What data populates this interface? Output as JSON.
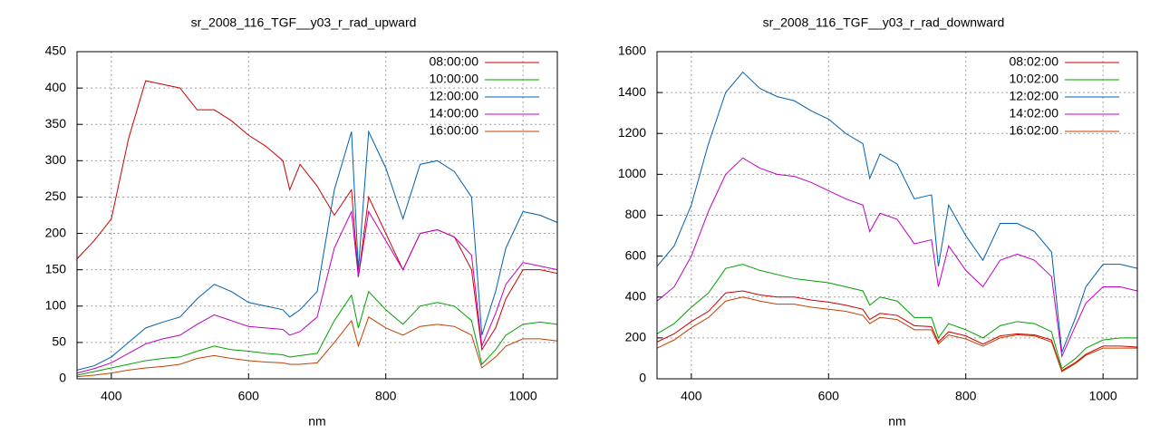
{
  "chart_data": [
    {
      "type": "line",
      "title": "sr_2008_116_TGF__y03_r_rad_upward",
      "x_label": "nm",
      "x": [
        350,
        375,
        400,
        425,
        450,
        475,
        500,
        525,
        550,
        575,
        600,
        625,
        650,
        660,
        675,
        700,
        725,
        750,
        760,
        775,
        800,
        825,
        850,
        875,
        900,
        925,
        940,
        960,
        975,
        1000,
        1025,
        1050
      ],
      "xlim": [
        350,
        1050
      ],
      "xticks": [
        400,
        600,
        800,
        1000
      ],
      "ylim": [
        0,
        450
      ],
      "yticks": [
        0,
        50,
        100,
        150,
        200,
        250,
        300,
        350,
        400,
        450
      ],
      "grid": true,
      "legend": "top-right",
      "series": [
        {
          "name": "08:00:00",
          "color": "#cc0000",
          "values": [
            165,
            190,
            220,
            330,
            410,
            405,
            400,
            370,
            370,
            355,
            335,
            320,
            300,
            260,
            295,
            265,
            225,
            260,
            140,
            250,
            200,
            150,
            200,
            205,
            195,
            150,
            40,
            70,
            110,
            150,
            150,
            145
          ]
        },
        {
          "name": "10:00:00",
          "color": "#00a000",
          "values": [
            5,
            10,
            15,
            20,
            25,
            28,
            30,
            38,
            45,
            40,
            38,
            35,
            33,
            30,
            32,
            35,
            80,
            115,
            70,
            120,
            95,
            75,
            100,
            105,
            100,
            80,
            20,
            40,
            60,
            75,
            78,
            75
          ]
        },
        {
          "name": "12:00:00",
          "color": "#0060ad",
          "values": [
            12,
            18,
            30,
            50,
            70,
            78,
            85,
            110,
            130,
            120,
            105,
            100,
            95,
            85,
            95,
            120,
            260,
            340,
            150,
            340,
            290,
            220,
            295,
            300,
            285,
            250,
            60,
            120,
            180,
            230,
            225,
            215
          ]
        },
        {
          "name": "14:00:00",
          "color": "#c000c0",
          "values": [
            8,
            14,
            22,
            35,
            48,
            55,
            60,
            75,
            88,
            80,
            72,
            70,
            68,
            60,
            65,
            85,
            180,
            230,
            140,
            230,
            190,
            150,
            200,
            205,
            195,
            170,
            45,
            90,
            130,
            160,
            155,
            150
          ]
        },
        {
          "name": "16:00:00",
          "color": "#c04000",
          "values": [
            3,
            5,
            8,
            12,
            15,
            17,
            20,
            28,
            32,
            28,
            25,
            23,
            22,
            20,
            20,
            22,
            50,
            80,
            45,
            85,
            70,
            60,
            72,
            75,
            72,
            60,
            15,
            30,
            45,
            55,
            55,
            52
          ]
        }
      ]
    },
    {
      "type": "line",
      "title": "sr_2008_116_TGF__y03_r_rad_downward",
      "x_label": "nm",
      "x": [
        350,
        375,
        400,
        425,
        450,
        475,
        500,
        525,
        550,
        575,
        600,
        625,
        650,
        660,
        675,
        700,
        725,
        750,
        760,
        775,
        800,
        825,
        850,
        875,
        900,
        925,
        940,
        960,
        975,
        1000,
        1025,
        1050
      ],
      "xlim": [
        350,
        1050
      ],
      "xticks": [
        400,
        600,
        800,
        1000
      ],
      "ylim": [
        0,
        1600
      ],
      "yticks": [
        0,
        200,
        400,
        600,
        800,
        1000,
        1200,
        1400,
        1600
      ],
      "grid": true,
      "legend": "top-right",
      "series": [
        {
          "name": "08:02:00",
          "color": "#cc0000",
          "values": [
            180,
            220,
            280,
            330,
            420,
            430,
            410,
            400,
            400,
            385,
            375,
            360,
            340,
            290,
            320,
            310,
            260,
            255,
            180,
            230,
            210,
            170,
            210,
            220,
            215,
            190,
            40,
            80,
            120,
            160,
            160,
            155
          ]
        },
        {
          "name": "10:02:00",
          "color": "#00a000",
          "values": [
            220,
            270,
            350,
            420,
            540,
            560,
            530,
            510,
            490,
            480,
            470,
            450,
            430,
            360,
            400,
            380,
            300,
            300,
            200,
            270,
            240,
            200,
            260,
            280,
            270,
            230,
            50,
            100,
            150,
            190,
            200,
            200
          ]
        },
        {
          "name": "12:02:00",
          "color": "#0060ad",
          "values": [
            550,
            650,
            850,
            1150,
            1400,
            1500,
            1420,
            1380,
            1360,
            1310,
            1270,
            1200,
            1150,
            980,
            1100,
            1050,
            880,
            900,
            550,
            850,
            700,
            580,
            760,
            760,
            720,
            620,
            130,
            300,
            450,
            560,
            560,
            540
          ]
        },
        {
          "name": "14:02:00",
          "color": "#c000c0",
          "values": [
            380,
            450,
            600,
            820,
            1000,
            1080,
            1030,
            1000,
            990,
            960,
            920,
            880,
            850,
            720,
            810,
            780,
            660,
            680,
            450,
            650,
            530,
            450,
            580,
            610,
            580,
            500,
            110,
            260,
            370,
            450,
            450,
            430
          ]
        },
        {
          "name": "16:02:00",
          "color": "#c04000",
          "values": [
            150,
            190,
            250,
            300,
            380,
            400,
            380,
            365,
            365,
            350,
            340,
            330,
            310,
            270,
            300,
            290,
            240,
            240,
            170,
            215,
            195,
            160,
            200,
            215,
            210,
            180,
            35,
            75,
            115,
            150,
            150,
            150
          ]
        }
      ]
    }
  ]
}
